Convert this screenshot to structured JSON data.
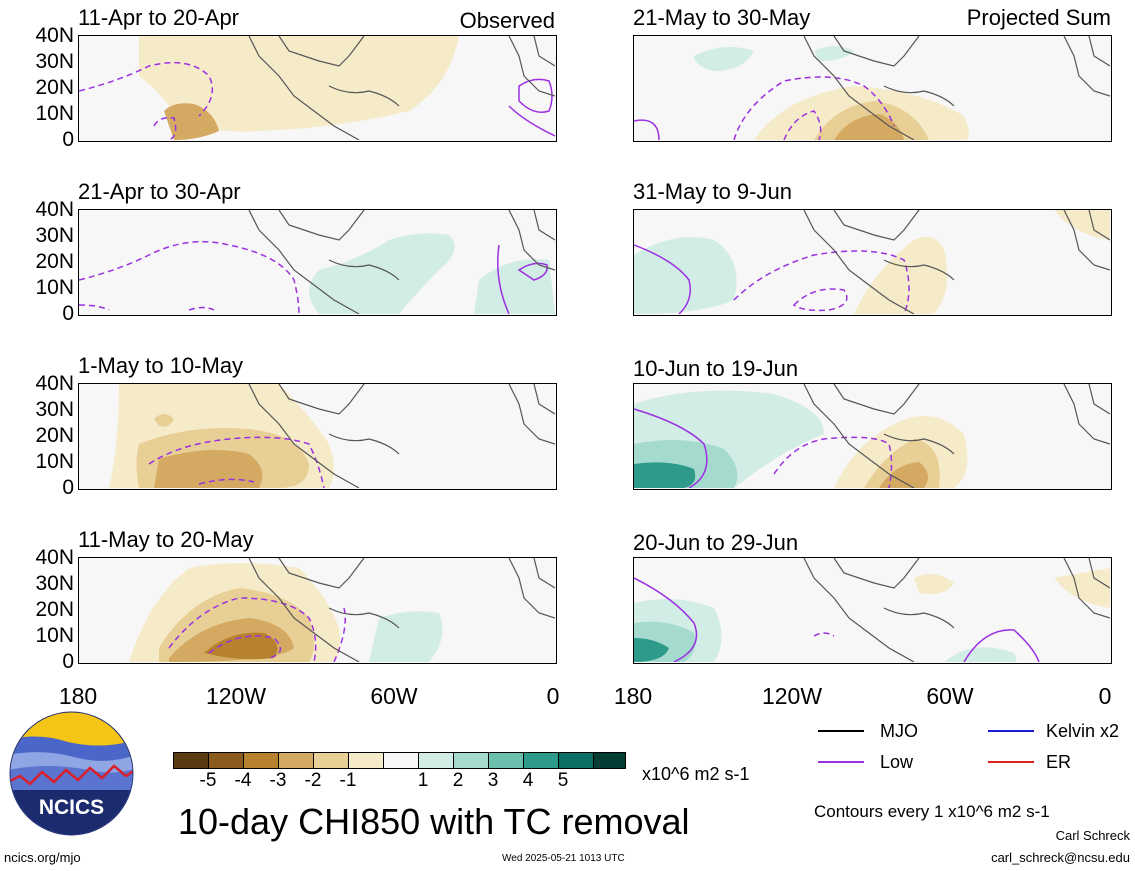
{
  "panels_left": [
    {
      "title": "11-Apr to 20-Apr",
      "tag": "Observed"
    },
    {
      "title": "21-Apr to 30-Apr",
      "tag": ""
    },
    {
      "title": "1-May to 10-May",
      "tag": ""
    },
    {
      "title": "11-May to 20-May",
      "tag": ""
    }
  ],
  "panels_right": [
    {
      "title": "21-May to 30-May",
      "tag": "Projected Sum"
    },
    {
      "title": "31-May to 9-Jun",
      "tag": ""
    },
    {
      "title": "10-Jun to 19-Jun",
      "tag": ""
    },
    {
      "title": "20-Jun to 29-Jun",
      "tag": ""
    }
  ],
  "lat_ticks": [
    "40N",
    "30N",
    "20N",
    "10N",
    "0"
  ],
  "lon_ticks": [
    "180",
    "120W",
    "60W",
    "0"
  ],
  "colorbar": {
    "colors": [
      "#5a3a10",
      "#8b5a1e",
      "#b7822f",
      "#d4aa62",
      "#e8cf95",
      "#f6ebc9",
      "#f7f7f7",
      "#d2ece6",
      "#a5dbcf",
      "#6bbfae",
      "#2e9a89",
      "#0d6f63",
      "#043d35"
    ],
    "labels": [
      "-5",
      "-4",
      "-3",
      "-2",
      "-1",
      "1",
      "2",
      "3",
      "4",
      "5"
    ],
    "units": "x10^6 m2 s-1"
  },
  "legend": {
    "items": [
      {
        "label": "MJO",
        "color": "#000000"
      },
      {
        "label": "Kelvin x2",
        "color": "#1a1ad6"
      },
      {
        "label": "Low",
        "color": "#9b30e0"
      },
      {
        "label": "ER",
        "color": "#e0201a"
      }
    ],
    "contours_note": "Contours every 1 x10^6 m2 s-1"
  },
  "title": "10-day CHI850 with TC removal",
  "logo_text": "NCICS",
  "footer": {
    "url": "ncics.org/mjo",
    "timestamp": "Wed 2025-05-21 1013 UTC",
    "author": "Carl Schreck",
    "email": "carl_schreck@ncsu.edu"
  }
}
